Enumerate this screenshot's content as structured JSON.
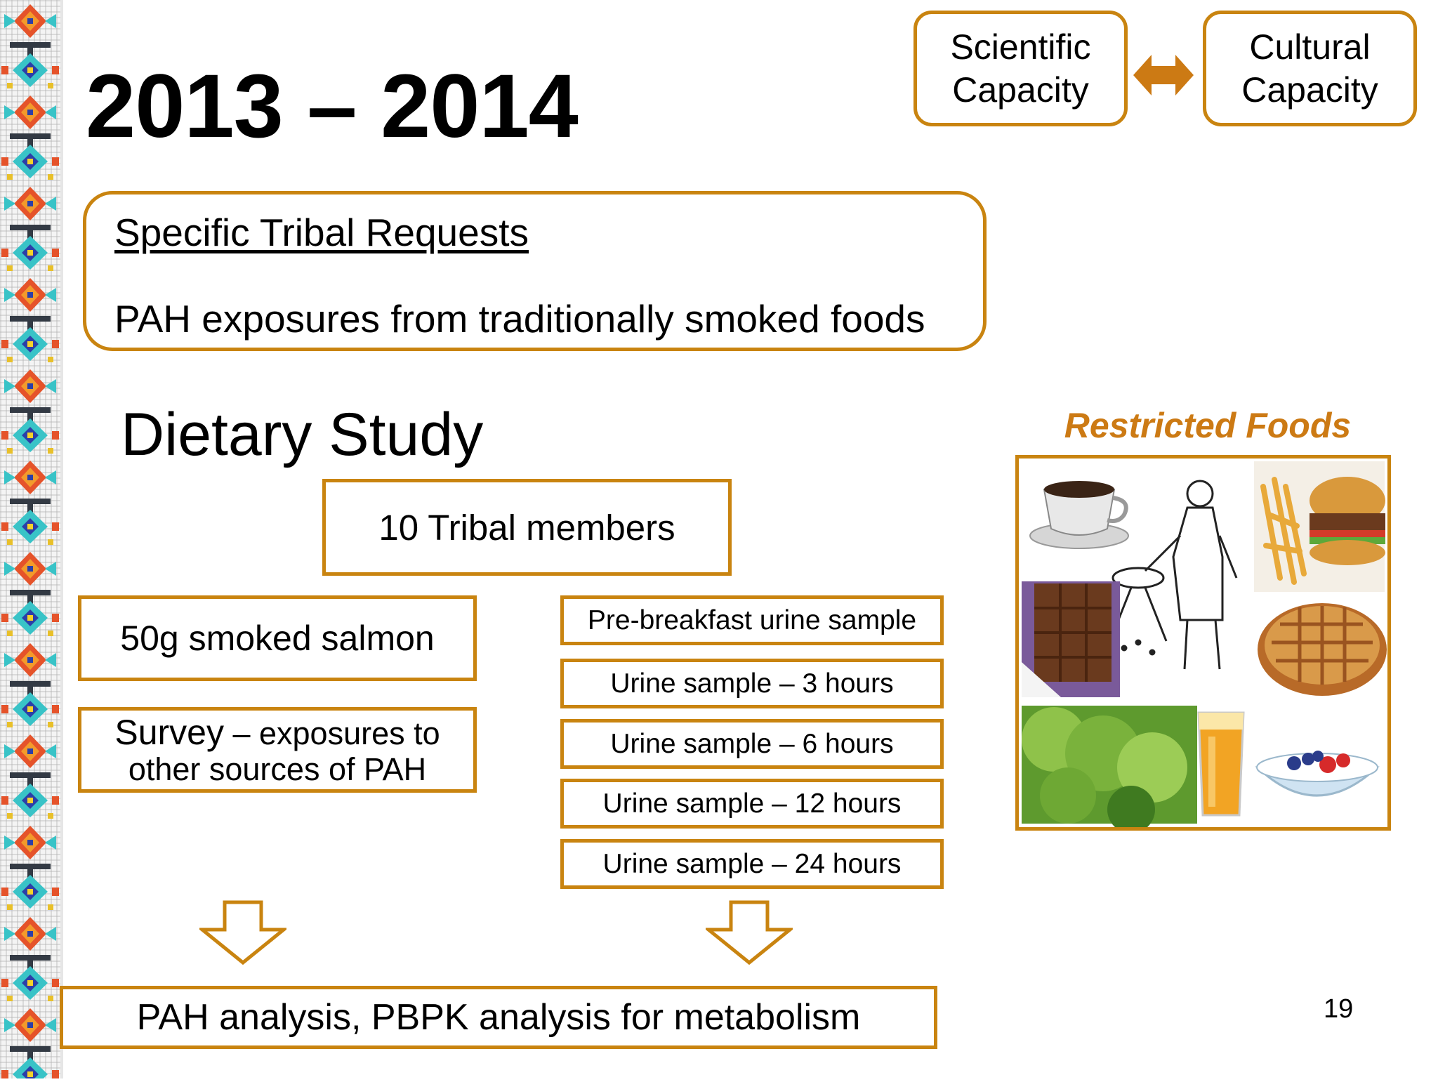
{
  "title": "2013 – 2014",
  "capacity": {
    "scientific": [
      "Scientific",
      "Capacity"
    ],
    "cultural": [
      "Cultural",
      "Capacity"
    ]
  },
  "requests": {
    "heading": "Specific Tribal Requests",
    "text": "PAH exposures from traditionally smoked foods"
  },
  "study": {
    "title": "Dietary Study",
    "members": "10 Tribal members",
    "salmon": "50g smoked salmon",
    "survey_line1_lead": "Survey",
    "survey_line1_rest": " – exposures to",
    "survey_line2": "other sources of PAH",
    "samples": [
      "Pre-breakfast urine sample",
      "Urine sample – 3 hours",
      "Urine sample – 6 hours",
      "Urine sample – 12 hours",
      "Urine sample – 24 hours"
    ],
    "analysis": "PAH analysis, PBPK analysis for metabolism"
  },
  "restricted": {
    "title": "Restricted Foods"
  },
  "page_number": "19",
  "colors": {
    "accent": "#c98410",
    "arrow": "#cc7a14",
    "restricted_title": "#cc7a14"
  }
}
